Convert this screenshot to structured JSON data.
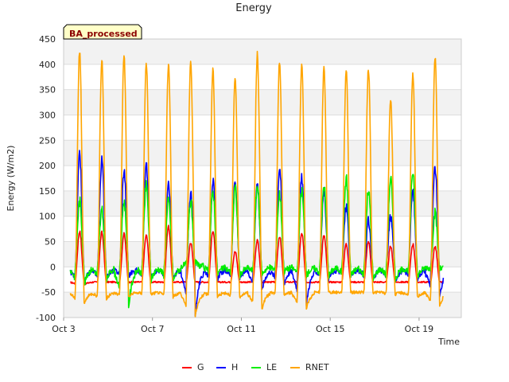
{
  "chart_data": {
    "type": "line",
    "title": "Energy",
    "xlabel": "Time",
    "ylabel": "Energy (W/m2)",
    "badge": "BA_processed",
    "xlim": [
      0,
      17.9
    ],
    "ylim": [
      -100,
      450
    ],
    "x_ticks": [
      {
        "value": 0,
        "label": "Oct 3"
      },
      {
        "value": 4,
        "label": "Oct 7"
      },
      {
        "value": 8,
        "label": "Oct 11"
      },
      {
        "value": 12,
        "label": "Oct 15"
      },
      {
        "value": 16,
        "label": "Oct 19"
      }
    ],
    "y_ticks": [
      -100,
      -50,
      0,
      50,
      100,
      150,
      200,
      250,
      300,
      350,
      400,
      450
    ],
    "grid": true,
    "legend_position": "bottom",
    "days": [
      "Oct 3",
      "Oct 4",
      "Oct 5",
      "Oct 6",
      "Oct 7",
      "Oct 8",
      "Oct 9",
      "Oct 10",
      "Oct 11",
      "Oct 12",
      "Oct 13",
      "Oct 14",
      "Oct 15",
      "Oct 16",
      "Oct 17",
      "Oct 18",
      "Oct 19"
    ],
    "series": [
      {
        "name": "G",
        "color": "#ff0000",
        "night": -30,
        "peaks": [
          70,
          68,
          65,
          62,
          80,
          48,
          72,
          30,
          52,
          60,
          65,
          62,
          45,
          50,
          40,
          45,
          40
        ],
        "lows": [
          -35,
          -30,
          -30,
          -30,
          -30,
          -30,
          -30,
          -30,
          -30,
          -30,
          -30,
          -30,
          -30,
          -30,
          -30,
          -30,
          -30
        ]
      },
      {
        "name": "H",
        "color": "#0000ff",
        "night": -5,
        "peaks": [
          220,
          210,
          190,
          200,
          160,
          145,
          170,
          165,
          165,
          195,
          175,
          150,
          120,
          90,
          100,
          150,
          195
        ],
        "lows": [
          -35,
          -25,
          -20,
          -20,
          -25,
          -100,
          -25,
          -25,
          -50,
          -35,
          -80,
          -25,
          -20,
          -25,
          -30,
          -25,
          -65
        ]
      },
      {
        "name": "LE",
        "color": "#00ee00",
        "night": 0,
        "peaks": [
          130,
          110,
          130,
          160,
          130,
          130,
          150,
          155,
          160,
          145,
          150,
          160,
          175,
          150,
          175,
          190,
          105
        ],
        "lows": [
          -40,
          -30,
          -85,
          -30,
          -30,
          10,
          -15,
          -20,
          -15,
          -10,
          -20,
          -20,
          -20,
          -30,
          -30,
          -20,
          -5
        ]
      },
      {
        "name": "RNET",
        "color": "#ffa500",
        "night": -50,
        "peaks": [
          425,
          410,
          418,
          405,
          400,
          402,
          388,
          373,
          420,
          405,
          395,
          393,
          390,
          392,
          332,
          378,
          415
        ],
        "lows": [
          -75,
          -65,
          -60,
          -55,
          -60,
          -100,
          -60,
          -60,
          -85,
          -55,
          -85,
          -50,
          -50,
          -50,
          -55,
          -60,
          -80
        ]
      }
    ]
  }
}
